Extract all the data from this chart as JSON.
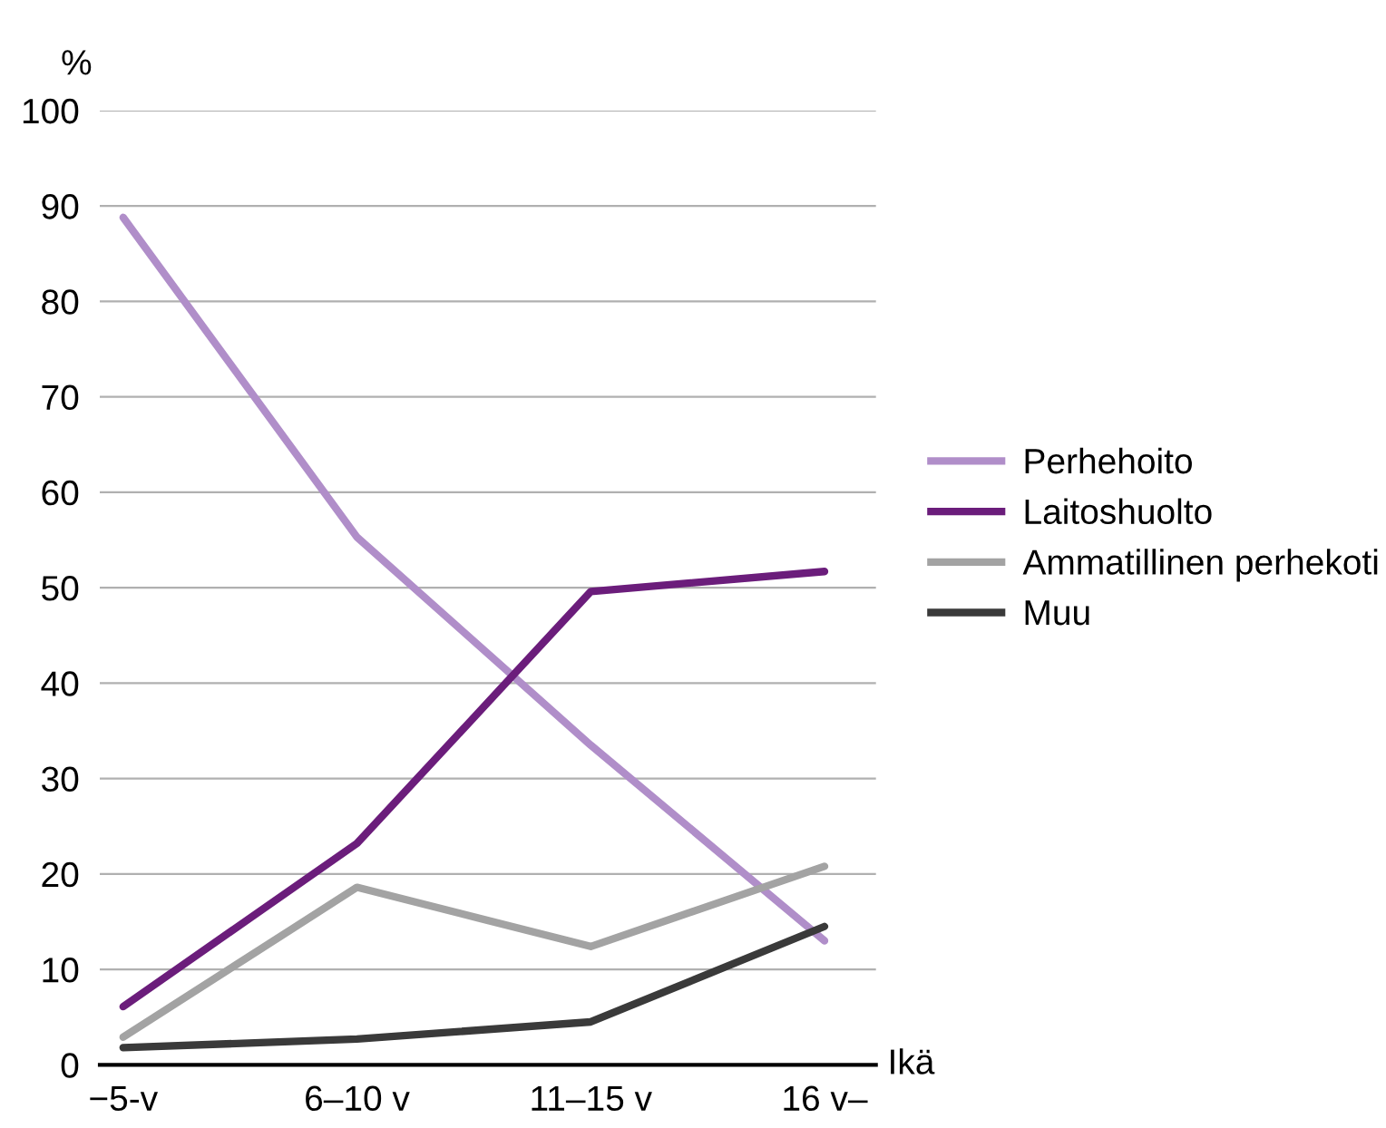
{
  "chart_data": {
    "type": "line",
    "xlabel": "Ikä",
    "ylabel": "%",
    "categories": [
      "−5-v",
      "6–10 v",
      "11–15 v",
      "16 v–"
    ],
    "series": [
      {
        "name": "Perhehoito",
        "color": "#b08ec9",
        "values": [
          88.8,
          55.3,
          33.5,
          13
        ]
      },
      {
        "name": "Laitoshuolto",
        "color": "#6b1d7b",
        "values": [
          6.1,
          23.2,
          49.6,
          51.7
        ]
      },
      {
        "name": "Ammatillinen perhekoti",
        "color": "#a3a3a3",
        "values": [
          2.9,
          18.6,
          12.4,
          20.8
        ]
      },
      {
        "name": "Muu",
        "color": "#3a3a3a",
        "values": [
          1.8,
          2.7,
          4.5,
          14.5
        ]
      }
    ],
    "ylim": [
      0,
      100
    ],
    "yticks": [
      0,
      10,
      20,
      30,
      40,
      50,
      60,
      70,
      80,
      90,
      100
    ],
    "grid": "y",
    "legend": "right",
    "marker": "none",
    "line_style": "solid"
  }
}
